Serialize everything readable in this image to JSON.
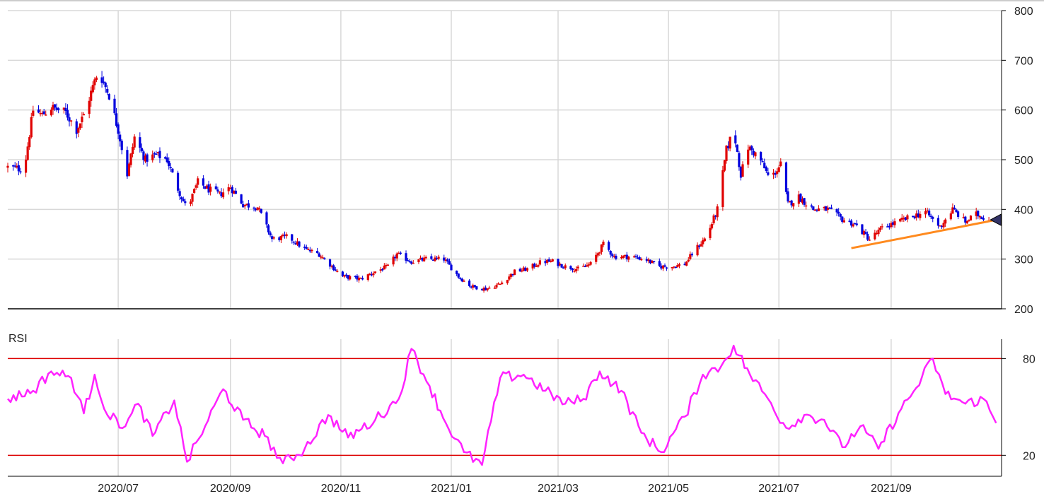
{
  "chart_data": [
    {
      "type": "candlestick",
      "ylim": [
        200,
        800
      ],
      "y_ticks": [
        "800",
        "700",
        "600",
        "500",
        "400",
        "300",
        "200"
      ],
      "x_tick_labels": [
        "2020/07",
        "2020/09",
        "2020/11",
        "2021/01",
        "2021/03",
        "2021/05",
        "2021/07",
        "2021/09"
      ],
      "grid": true,
      "colors": {
        "up": "#e00000",
        "down": "#0000dd",
        "trendline": "#ff8a1e",
        "marker": "#333366"
      },
      "close_path": [
        [
          "2020-05-01",
          485
        ],
        [
          "2020-05-10",
          480
        ],
        [
          "2020-05-15",
          600
        ],
        [
          "2020-05-20",
          590
        ],
        [
          "2020-05-25",
          605
        ],
        [
          "2020-06-02",
          595
        ],
        [
          "2020-06-08",
          560
        ],
        [
          "2020-06-12",
          590
        ],
        [
          "2020-06-20",
          680
        ],
        [
          "2020-06-26",
          630
        ],
        [
          "2020-07-01",
          560
        ],
        [
          "2020-07-06",
          470
        ],
        [
          "2020-07-10",
          545
        ],
        [
          "2020-07-16",
          500
        ],
        [
          "2020-07-22",
          510
        ],
        [
          "2020-07-28",
          500
        ],
        [
          "2020-08-02",
          450
        ],
        [
          "2020-08-08",
          400
        ],
        [
          "2020-08-14",
          455
        ],
        [
          "2020-08-20",
          440
        ],
        [
          "2020-08-26",
          430
        ],
        [
          "2020-09-01",
          445
        ],
        [
          "2020-09-08",
          410
        ],
        [
          "2020-09-16",
          405
        ],
        [
          "2020-09-24",
          340
        ],
        [
          "2020-10-03",
          345
        ],
        [
          "2020-10-12",
          320
        ],
        [
          "2020-10-20",
          310
        ],
        [
          "2020-11-02",
          265
        ],
        [
          "2020-11-12",
          260
        ],
        [
          "2020-11-20",
          275
        ],
        [
          "2020-11-27",
          285
        ],
        [
          "2020-12-02",
          310
        ],
        [
          "2020-12-10",
          295
        ],
        [
          "2020-12-18",
          300
        ],
        [
          "2020-12-28",
          300
        ],
        [
          "2021-01-05",
          265
        ],
        [
          "2021-01-12",
          245
        ],
        [
          "2021-01-20",
          240
        ],
        [
          "2021-01-28",
          250
        ],
        [
          "2021-02-05",
          275
        ],
        [
          "2021-02-12",
          280
        ],
        [
          "2021-02-20",
          295
        ],
        [
          "2021-02-26",
          295
        ],
        [
          "2021-03-05",
          285
        ],
        [
          "2021-03-12",
          280
        ],
        [
          "2021-03-19",
          290
        ],
        [
          "2021-03-26",
          330
        ],
        [
          "2021-04-01",
          305
        ],
        [
          "2021-04-10",
          305
        ],
        [
          "2021-04-18",
          300
        ],
        [
          "2021-04-26",
          285
        ],
        [
          "2021-05-03",
          285
        ],
        [
          "2021-05-10",
          290
        ],
        [
          "2021-05-16",
          320
        ],
        [
          "2021-05-22",
          345
        ],
        [
          "2021-05-28",
          400
        ],
        [
          "2021-06-02",
          520
        ],
        [
          "2021-06-06",
          560
        ],
        [
          "2021-06-10",
          470
        ],
        [
          "2021-06-14",
          525
        ],
        [
          "2021-06-20",
          505
        ],
        [
          "2021-06-26",
          460
        ],
        [
          "2021-07-02",
          490
        ],
        [
          "2021-07-06",
          410
        ],
        [
          "2021-07-12",
          425
        ],
        [
          "2021-07-20",
          400
        ],
        [
          "2021-07-28",
          400
        ],
        [
          "2021-08-05",
          380
        ],
        [
          "2021-08-12",
          370
        ],
        [
          "2021-08-20",
          340
        ],
        [
          "2021-08-28",
          365
        ],
        [
          "2021-09-05",
          375
        ],
        [
          "2021-09-12",
          385
        ],
        [
          "2021-09-20",
          395
        ],
        [
          "2021-09-28",
          365
        ],
        [
          "2021-10-05",
          400
        ],
        [
          "2021-10-12",
          375
        ],
        [
          "2021-10-18",
          390
        ],
        [
          "2021-10-25",
          380
        ]
      ],
      "trendline": {
        "from": [
          "2021-08-10",
          322
        ],
        "to": [
          "2021-11-01",
          381
        ]
      },
      "marker": {
        "date": "2021-10-29",
        "value": 379
      }
    },
    {
      "type": "line",
      "title": "RSI",
      "ylim": [
        7,
        92
      ],
      "y_ticks": [
        "80",
        "20"
      ],
      "reference_lines": [
        80,
        20
      ],
      "colors": {
        "series": "#ff22ff",
        "reference": "#dd0000"
      },
      "x": [
        "2020-05-01",
        "2020-05-15",
        "2020-05-25",
        "2020-06-05",
        "2020-06-12",
        "2020-06-18",
        "2020-06-25",
        "2020-07-05",
        "2020-07-12",
        "2020-07-20",
        "2020-08-01",
        "2020-08-08",
        "2020-08-18",
        "2020-08-28",
        "2020-09-08",
        "2020-09-20",
        "2020-09-30",
        "2020-10-12",
        "2020-10-25",
        "2020-11-05",
        "2020-11-20",
        "2020-12-03",
        "2020-12-10",
        "2020-12-20",
        "2020-12-29",
        "2021-01-08",
        "2021-01-18",
        "2021-01-28",
        "2021-02-10",
        "2021-02-22",
        "2021-03-05",
        "2021-03-15",
        "2021-03-24",
        "2021-04-05",
        "2021-04-16",
        "2021-04-27",
        "2021-05-10",
        "2021-05-20",
        "2021-05-30",
        "2021-06-06",
        "2021-06-15",
        "2021-06-25",
        "2021-07-05",
        "2021-07-15",
        "2021-07-26",
        "2021-08-05",
        "2021-08-15",
        "2021-08-25",
        "2021-09-05",
        "2021-09-15",
        "2021-09-24",
        "2021-10-01",
        "2021-10-12",
        "2021-10-22",
        "2021-10-29"
      ],
      "values": [
        55,
        60,
        72,
        68,
        46,
        70,
        45,
        38,
        52,
        32,
        54,
        16,
        38,
        61,
        42,
        32,
        15,
        24,
        45,
        31,
        42,
        55,
        86,
        63,
        40,
        22,
        14,
        68,
        70,
        60,
        52,
        55,
        72,
        60,
        34,
        22,
        44,
        70,
        75,
        88,
        70,
        55,
        37,
        45,
        42,
        25,
        38,
        24,
        46,
        62,
        80,
        58,
        52,
        55,
        40
      ]
    }
  ]
}
